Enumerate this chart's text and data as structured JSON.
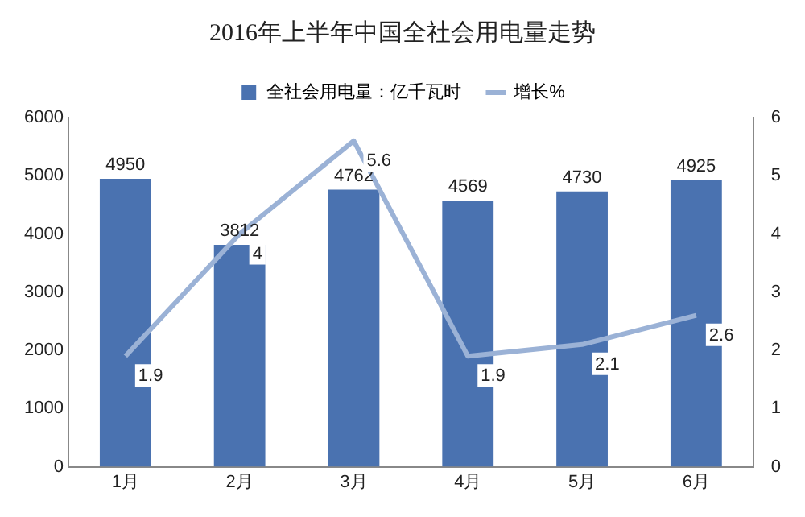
{
  "chart_data": {
    "type": "bar",
    "title": "2016年上半年中国全社会用电量走势",
    "categories": [
      "1月",
      "2月",
      "3月",
      "4月",
      "5月",
      "6月"
    ],
    "series": [
      {
        "name": "全社会用电量：亿千瓦时",
        "color": "#4a72b0",
        "values": [
          4950,
          3812,
          4762,
          4569,
          4730,
          4925
        ]
      },
      {
        "name": "增长%",
        "type": "line",
        "axis": "y2",
        "color": "#9bb2d6",
        "values": [
          1.9,
          4,
          5.6,
          1.9,
          2.1,
          2.6
        ]
      }
    ],
    "ylim": [
      0,
      6000
    ],
    "yticks": [
      0,
      1000,
      2000,
      3000,
      4000,
      5000,
      6000
    ],
    "y2lim": [
      0,
      6
    ],
    "y2ticks": [
      0,
      1,
      2,
      3,
      4,
      5,
      6
    ],
    "data_labels": true,
    "legend": "top",
    "grid": false,
    "marker": "none",
    "line_style": "solid"
  }
}
